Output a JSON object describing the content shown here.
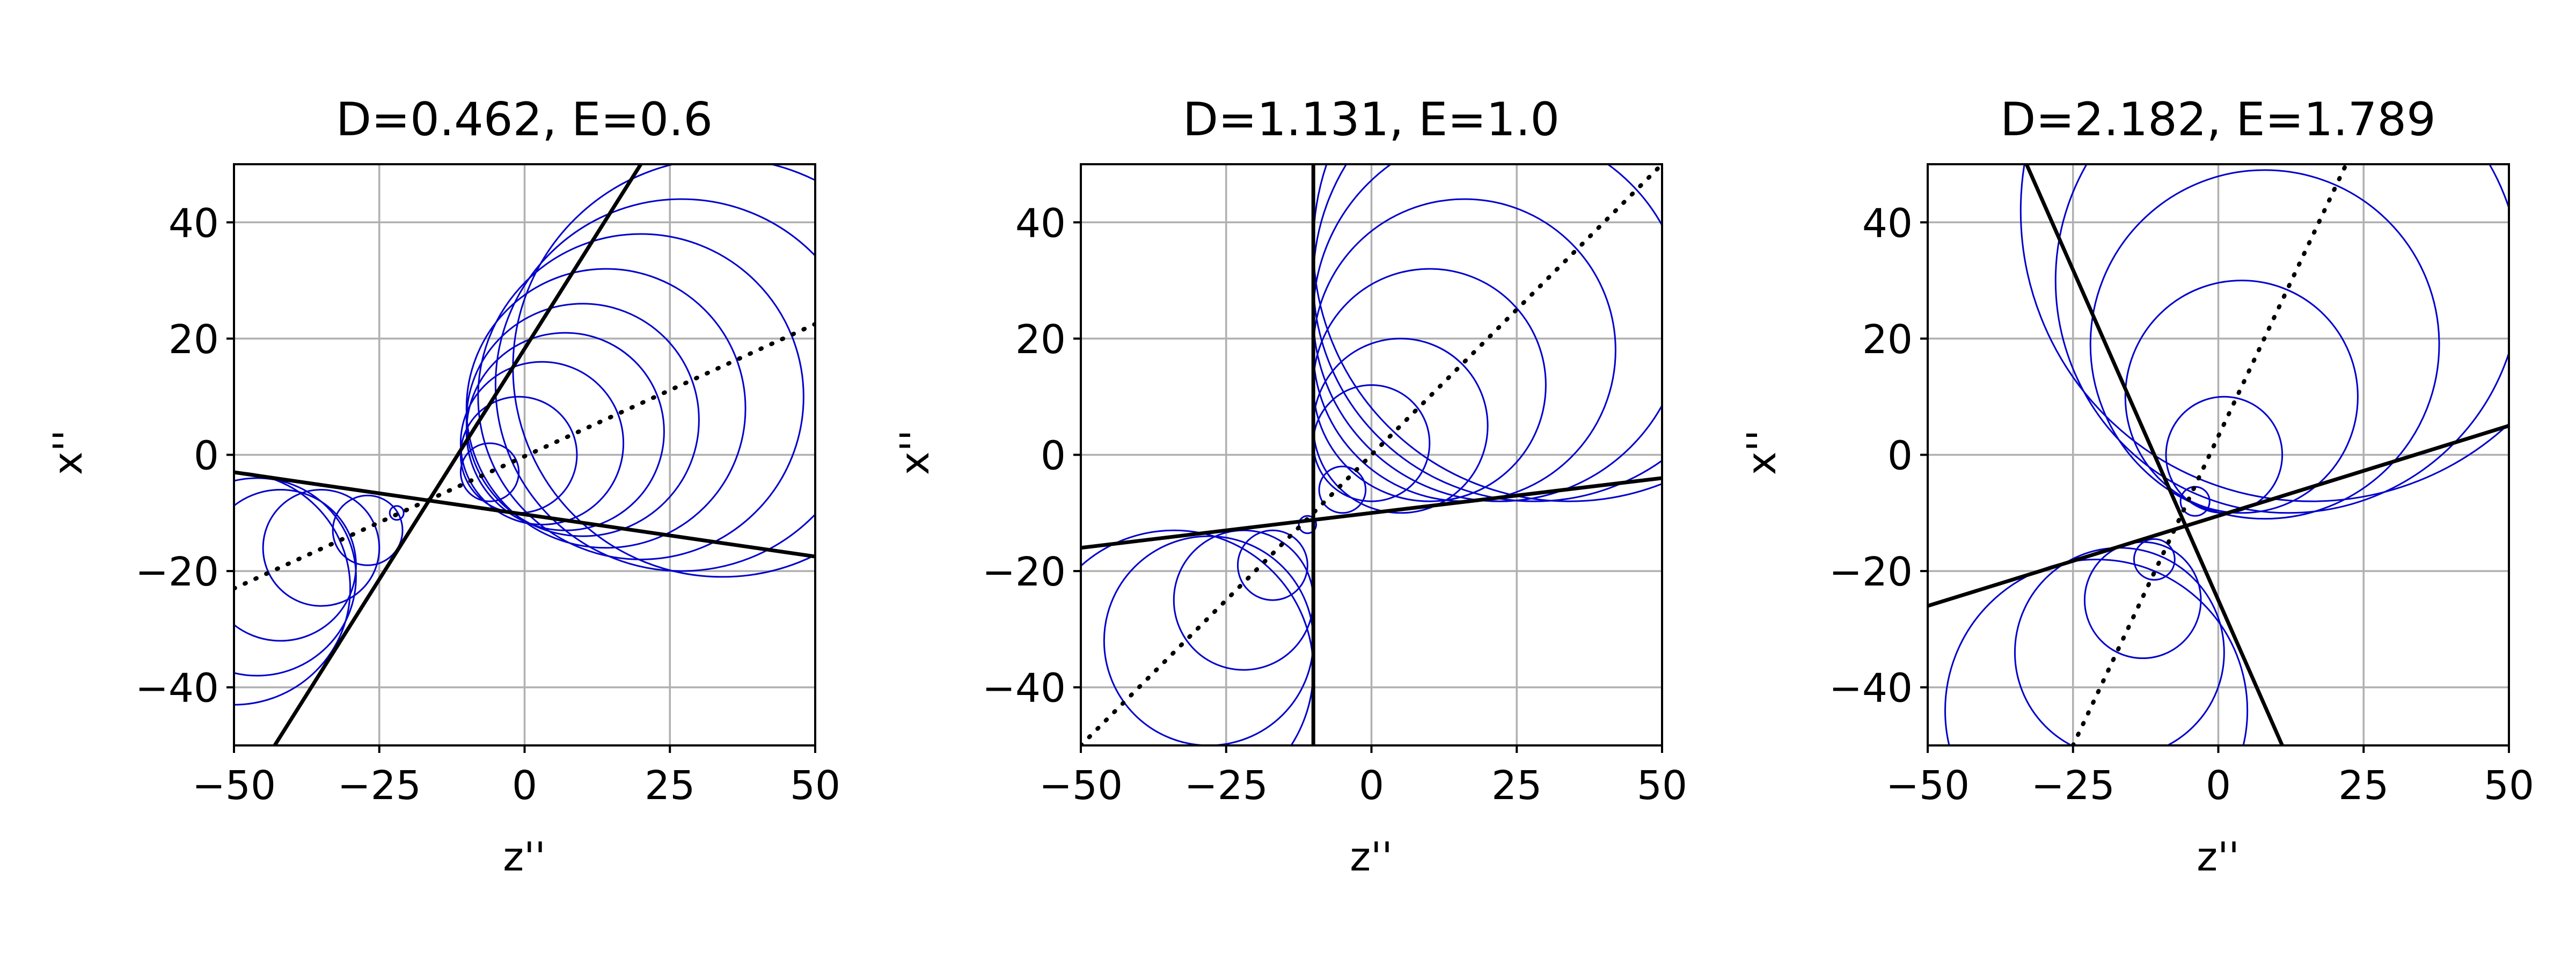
{
  "chart_data": [
    {
      "type": "line",
      "title": "D=0.462, E=0.6",
      "xlabel": "z''",
      "ylabel": "x''",
      "xlim": [
        -50,
        50
      ],
      "ylim": [
        -50,
        50
      ],
      "xticks": [
        -50,
        -25,
        0,
        25,
        50
      ],
      "yticks": [
        -40,
        -20,
        0,
        20,
        40
      ],
      "xtick_labels": [
        "−50",
        "−25",
        "0",
        "25",
        "50"
      ],
      "ytick_labels": [
        "−40",
        "−20",
        "0",
        "20",
        "40"
      ],
      "grid": true,
      "lines": [
        {
          "style": "solid",
          "color": "#000000",
          "points": [
            [
              -50,
              -3
            ],
            [
              50,
              -17.5
            ]
          ]
        },
        {
          "style": "solid",
          "color": "#000000",
          "points": [
            [
              -43,
              -50
            ],
            [
              20,
              50
            ]
          ]
        },
        {
          "style": "dotted",
          "color": "#000000",
          "points": [
            [
              -50,
              -23
            ],
            [
              50,
              22.5
            ]
          ]
        }
      ],
      "circles": [
        {
          "cx": -22,
          "cy": -10,
          "r": 1.2
        },
        {
          "cx": -6,
          "cy": -3,
          "r": 5
        },
        {
          "cx": -27,
          "cy": -13,
          "r": 6
        },
        {
          "cx": -1,
          "cy": 0,
          "r": 10
        },
        {
          "cx": -35,
          "cy": -16,
          "r": 10
        },
        {
          "cx": 3,
          "cy": 2,
          "r": 14
        },
        {
          "cx": -42,
          "cy": -19,
          "r": 13
        },
        {
          "cx": 7,
          "cy": 4,
          "r": 17
        },
        {
          "cx": -46,
          "cy": -21,
          "r": 17
        },
        {
          "cx": 10,
          "cy": 6,
          "r": 20
        },
        {
          "cx": -50,
          "cy": -23,
          "r": 20
        },
        {
          "cx": 14,
          "cy": 8,
          "r": 24
        },
        {
          "cx": 20,
          "cy": 10,
          "r": 28
        },
        {
          "cx": 27,
          "cy": 12,
          "r": 32
        },
        {
          "cx": 34,
          "cy": 15,
          "r": 36
        }
      ]
    },
    {
      "type": "line",
      "title": "D=1.131, E=1.0",
      "xlabel": "z''",
      "ylabel": "x''",
      "xlim": [
        -50,
        50
      ],
      "ylim": [
        -50,
        50
      ],
      "xticks": [
        -50,
        -25,
        0,
        25,
        50
      ],
      "yticks": [
        -40,
        -20,
        0,
        20,
        40
      ],
      "xtick_labels": [
        "−50",
        "−25",
        "0",
        "25",
        "50"
      ],
      "ytick_labels": [
        "−40",
        "−20",
        "0",
        "20",
        "40"
      ],
      "grid": true,
      "lines": [
        {
          "style": "solid",
          "color": "#000000",
          "points": [
            [
              -50,
              -16
            ],
            [
              50,
              -4
            ]
          ]
        },
        {
          "style": "solid",
          "color": "#000000",
          "points": [
            [
              -10,
              -50
            ],
            [
              -10,
              50
            ]
          ]
        },
        {
          "style": "dotted",
          "color": "#000000",
          "points": [
            [
              -50,
              -50
            ],
            [
              50,
              50
            ]
          ]
        }
      ],
      "circles": [
        {
          "cx": -11,
          "cy": -12,
          "r": 1.5
        },
        {
          "cx": -5,
          "cy": -6,
          "r": 4
        },
        {
          "cx": -17,
          "cy": -19,
          "r": 6
        },
        {
          "cx": 0,
          "cy": 2,
          "r": 10
        },
        {
          "cx": -22,
          "cy": -25,
          "r": 12
        },
        {
          "cx": 5,
          "cy": 5,
          "r": 15
        },
        {
          "cx": -28,
          "cy": -32,
          "r": 18
        },
        {
          "cx": 10,
          "cy": 12,
          "r": 20
        },
        {
          "cx": -34,
          "cy": -37,
          "r": 24
        },
        {
          "cx": 16,
          "cy": 18,
          "r": 26
        },
        {
          "cx": 22,
          "cy": 24,
          "r": 32
        },
        {
          "cx": 28,
          "cy": 30,
          "r": 38
        },
        {
          "cx": 34,
          "cy": 36,
          "r": 44
        }
      ]
    },
    {
      "type": "line",
      "title": "D=2.182, E=1.789",
      "xlabel": "z''",
      "ylabel": "x''",
      "xlim": [
        -50,
        50
      ],
      "ylim": [
        -50,
        50
      ],
      "xticks": [
        -50,
        -25,
        0,
        25,
        50
      ],
      "yticks": [
        -40,
        -20,
        0,
        20,
        40
      ],
      "xtick_labels": [
        "−50",
        "−25",
        "0",
        "25",
        "50"
      ],
      "ytick_labels": [
        "−40",
        "−20",
        "0",
        "20",
        "40"
      ],
      "grid": true,
      "lines": [
        {
          "style": "solid",
          "color": "#000000",
          "points": [
            [
              -50,
              -26
            ],
            [
              50,
              5
            ]
          ]
        },
        {
          "style": "solid",
          "color": "#000000",
          "points": [
            [
              -33,
              50
            ],
            [
              11,
              -50
            ]
          ]
        },
        {
          "style": "dotted",
          "color": "#000000",
          "points": [
            [
              -25,
              -50
            ],
            [
              22,
              50
            ]
          ]
        }
      ],
      "circles": [
        {
          "cx": -4,
          "cy": -8,
          "r": 2.5
        },
        {
          "cx": -11,
          "cy": -18,
          "r": 3.5
        },
        {
          "cx": 1,
          "cy": 0,
          "r": 10
        },
        {
          "cx": -13,
          "cy": -25,
          "r": 10
        },
        {
          "cx": 4,
          "cy": 10,
          "r": 20
        },
        {
          "cx": -17,
          "cy": -34,
          "r": 18
        },
        {
          "cx": 8,
          "cy": 19,
          "r": 30
        },
        {
          "cx": -21,
          "cy": -44,
          "r": 26
        },
        {
          "cx": 12,
          "cy": 30,
          "r": 40
        },
        {
          "cx": 16,
          "cy": 42,
          "r": 50
        }
      ]
    }
  ]
}
